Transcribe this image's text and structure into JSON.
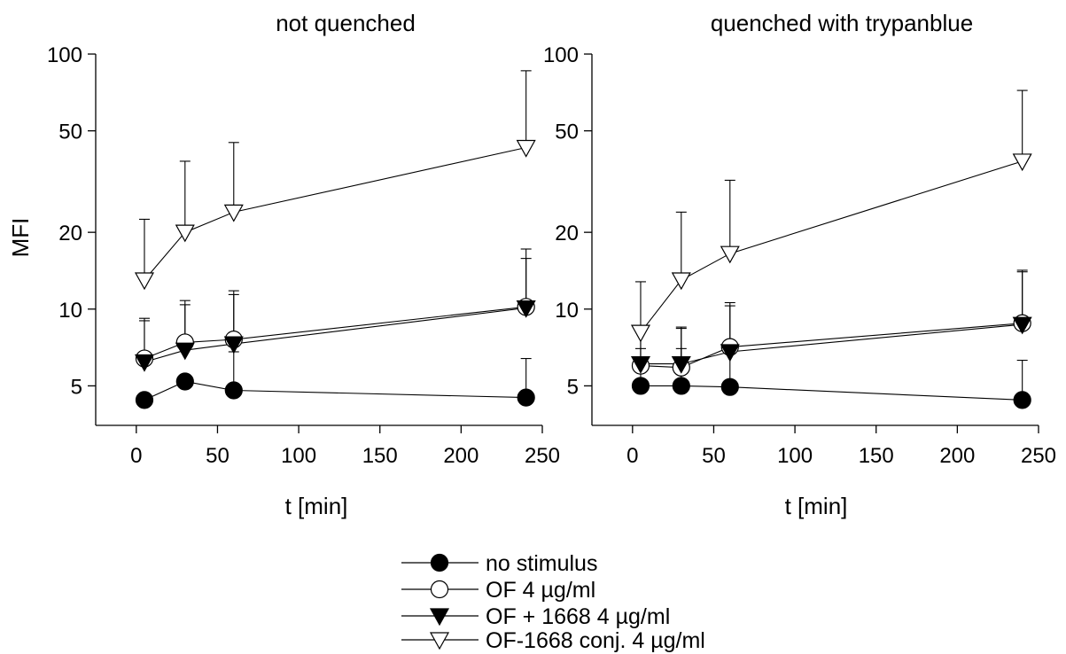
{
  "legend": {
    "position": "bottom-center",
    "entries": [
      {
        "label": "no stimulus",
        "marker": "filled-circle"
      },
      {
        "label": "OF 4 µg/ml",
        "marker": "open-circle"
      },
      {
        "label": "OF + 1668 4 µg/ml",
        "marker": "filled-triangle-down"
      },
      {
        "label": "OF-1668 conj. 4 µg/ml",
        "marker": "open-triangle-down"
      }
    ]
  },
  "chart_data": [
    {
      "type": "line",
      "title": "not quenched",
      "xlabel": "t [min]",
      "ylabel": "MFI",
      "xlim": [
        -25,
        250
      ],
      "ylim": [
        3.5,
        100
      ],
      "yscale": "log",
      "xticks": [
        0,
        50,
        100,
        150,
        200,
        250
      ],
      "yticks": [
        5,
        10,
        20,
        50,
        100
      ],
      "x": [
        5,
        30,
        60,
        240
      ],
      "series": [
        {
          "name": "no stimulus",
          "marker": "filled-circle",
          "values": [
            4.4,
            5.2,
            4.8,
            4.5
          ],
          "err_upper": [
            null,
            null,
            6.8,
            6.4
          ]
        },
        {
          "name": "OF 4 µg/ml",
          "marker": "open-circle",
          "values": [
            6.4,
            7.4,
            7.6,
            10.2
          ],
          "err_upper": [
            9.2,
            10.8,
            11.8,
            17.2
          ]
        },
        {
          "name": "OF + 1668 4 µg/ml",
          "marker": "filled-triangle-down",
          "values": [
            6.2,
            6.9,
            7.3,
            10.1
          ],
          "err_upper": [
            9.0,
            10.4,
            11.4,
            15.8
          ]
        },
        {
          "name": "OF-1668 conj. 4 µg/ml",
          "marker": "open-triangle-down",
          "values": [
            13,
            20,
            24,
            43
          ],
          "err_upper": [
            22.5,
            38,
            45,
            86
          ]
        }
      ]
    },
    {
      "type": "line",
      "title": "quenched with trypanblue",
      "xlabel": "t [min]",
      "ylabel": "",
      "xlim": [
        -25,
        250
      ],
      "ylim": [
        3.5,
        100
      ],
      "yscale": "log",
      "xticks": [
        0,
        50,
        100,
        150,
        200,
        250
      ],
      "yticks": [
        5,
        10,
        20,
        50,
        100
      ],
      "x": [
        5,
        30,
        60,
        240
      ],
      "series": [
        {
          "name": "no stimulus",
          "marker": "filled-circle",
          "values": [
            5.0,
            5.0,
            4.95,
            4.4
          ],
          "err_upper": [
            7.0,
            7.0,
            7.0,
            6.3
          ]
        },
        {
          "name": "OF 4 µg/ml",
          "marker": "open-circle",
          "values": [
            6.0,
            5.9,
            7.1,
            8.8
          ],
          "err_upper": [
            8.6,
            8.4,
            10.6,
            14.2
          ]
        },
        {
          "name": "OF + 1668 4 µg/ml",
          "marker": "filled-triangle-down",
          "values": [
            6.1,
            6.1,
            6.8,
            8.7
          ],
          "err_upper": [
            8.5,
            8.5,
            10.3,
            14.0
          ]
        },
        {
          "name": "OF-1668 conj. 4 µg/ml",
          "marker": "open-triangle-down",
          "values": [
            8.1,
            13,
            16.5,
            38
          ],
          "err_upper": [
            12.8,
            24,
            32,
            72
          ]
        }
      ]
    }
  ]
}
